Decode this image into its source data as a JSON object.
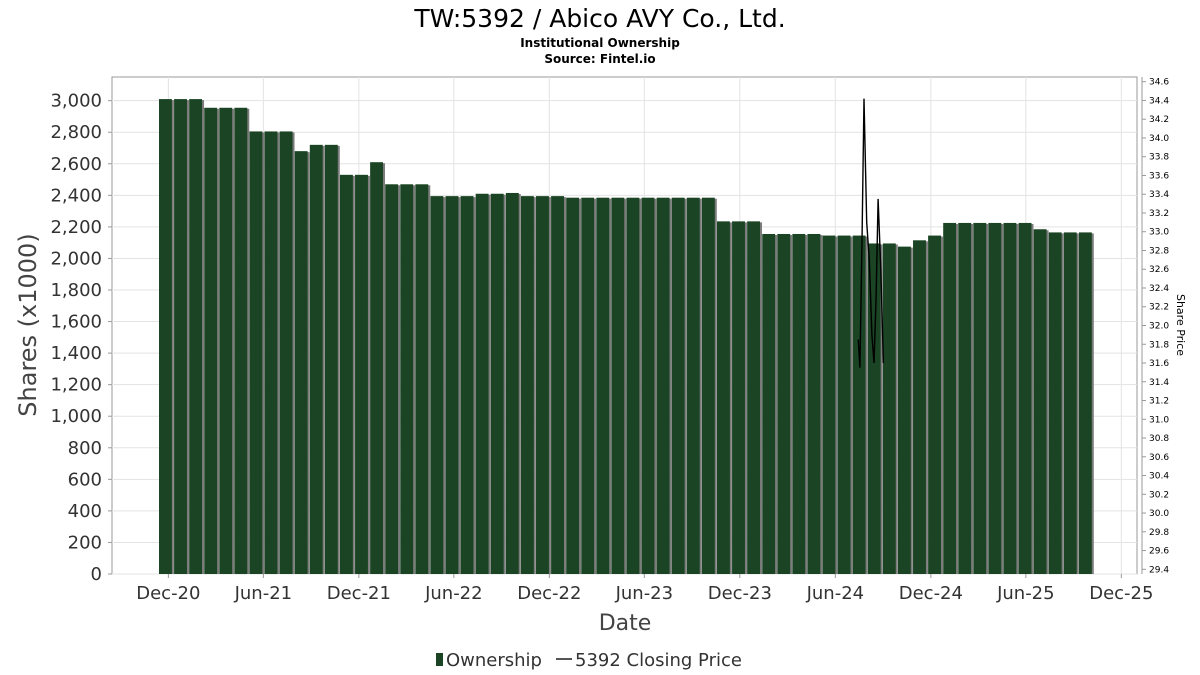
{
  "chart_data": {
    "type": "bar",
    "title": "TW:5392 / Abico AVY Co., Ltd.",
    "subtitle": "Institutional Ownership",
    "source": "Source: Fintel.io",
    "xlabel": "Date",
    "ylabel": "Shares (x1000)",
    "y2label": "Share Price",
    "ylim": [
      0,
      3150
    ],
    "y2lim": [
      29.35,
      34.65
    ],
    "x_range": [
      "2020-08-15",
      "2025-12-31"
    ],
    "x_ticks": [
      "Dec-20",
      "Jun-21",
      "Dec-21",
      "Jun-22",
      "Dec-22",
      "Jun-23",
      "Dec-23",
      "Jun-24",
      "Dec-24",
      "Jun-25",
      "Dec-25"
    ],
    "y_ticks": [
      "0",
      "200",
      "400",
      "600",
      "800",
      "1,000",
      "1,200",
      "1,400",
      "1,600",
      "1,800",
      "2,000",
      "2,200",
      "2,400",
      "2,600",
      "2,800",
      "3,000"
    ],
    "y2_ticks": [
      "29.4",
      "29.6",
      "29.8",
      "30.0",
      "30.2",
      "30.4",
      "30.6",
      "30.8",
      "31.0",
      "31.2",
      "31.4",
      "31.6",
      "31.8",
      "32.0",
      "32.2",
      "32.4",
      "32.6",
      "32.8",
      "33.0",
      "33.2",
      "33.4",
      "33.6",
      "33.8",
      "34.0",
      "34.2",
      "34.4",
      "34.6"
    ],
    "grid": true,
    "legend_position": "bottom",
    "series": [
      {
        "name": "Ownership",
        "kind": "bar",
        "color": "#1a4423",
        "values": [
          3010,
          3010,
          3010,
          2955,
          2955,
          2955,
          2805,
          2805,
          2805,
          2680,
          2720,
          2720,
          2530,
          2530,
          2610,
          2470,
          2470,
          2470,
          2395,
          2395,
          2395,
          2410,
          2410,
          2415,
          2395,
          2395,
          2395,
          2385,
          2385,
          2385,
          2385,
          2385,
          2385,
          2385,
          2385,
          2385,
          2385,
          2235,
          2235,
          2235,
          2155,
          2155,
          2155,
          2155,
          2145,
          2145,
          2145,
          2095,
          2095,
          2075,
          2115,
          2145,
          2225,
          2225,
          2225,
          2225,
          2225,
          2225,
          2185,
          2165,
          2165,
          2165
        ]
      },
      {
        "name": "5392 Closing Price",
        "kind": "line",
        "color": "#000000",
        "points": [
          [
            "2024-07-15",
            31.85
          ],
          [
            "2024-07-18",
            31.55
          ],
          [
            "2024-07-22",
            32.9
          ],
          [
            "2024-07-26",
            34.42
          ],
          [
            "2024-07-31",
            33.1
          ],
          [
            "2024-08-05",
            32.7
          ],
          [
            "2024-08-10",
            31.9
          ],
          [
            "2024-08-14",
            31.6
          ],
          [
            "2024-08-18",
            32.3
          ],
          [
            "2024-08-22",
            33.35
          ],
          [
            "2024-08-27",
            32.6
          ],
          [
            "2024-09-01",
            31.6
          ]
        ]
      }
    ]
  }
}
